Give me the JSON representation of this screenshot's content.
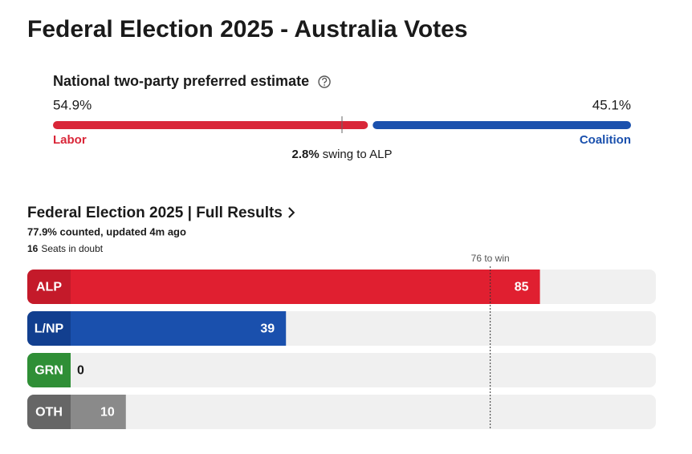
{
  "title": "Federal Election 2025 - Australia Votes",
  "chart_data": [
    {
      "type": "split-bar",
      "title": "National two-party preferred estimate",
      "series": [
        {
          "name": "Labor",
          "color": "#d92638",
          "values": [
            54.9
          ],
          "value_labels": [
            "54.9%"
          ]
        },
        {
          "name": "Coalition",
          "color": "#1a50ad",
          "values": [
            45.1
          ],
          "value_labels": [
            "45.1%"
          ]
        }
      ],
      "xlim": [
        0,
        100
      ],
      "marker": 50,
      "swing": {
        "value": 2.8,
        "label": "2.8%"
      },
      "swing_text": "swing to ALP"
    },
    {
      "type": "bar",
      "orientation": "horizontal",
      "title": "Federal Election 2025 | Full Results",
      "subtitle": "77.9% counted, updated 4m ago",
      "seats_in_doubt": 16,
      "seats_in_doubt_text": "Seats in doubt",
      "categories": [
        "ALP",
        "L/NP",
        "GRN",
        "OTH"
      ],
      "values": [
        85,
        39,
        0,
        10
      ],
      "colors": [
        "#e01f30",
        "#1a50ad",
        "#2f9a3a",
        "#8a8a8a"
      ],
      "label_colors": [
        "#c41a2a",
        "#123f8f",
        "#2f8f36",
        "#666666"
      ],
      "xlim": [
        0,
        106
      ],
      "target": {
        "value": 76,
        "label": "76 to win"
      }
    }
  ]
}
